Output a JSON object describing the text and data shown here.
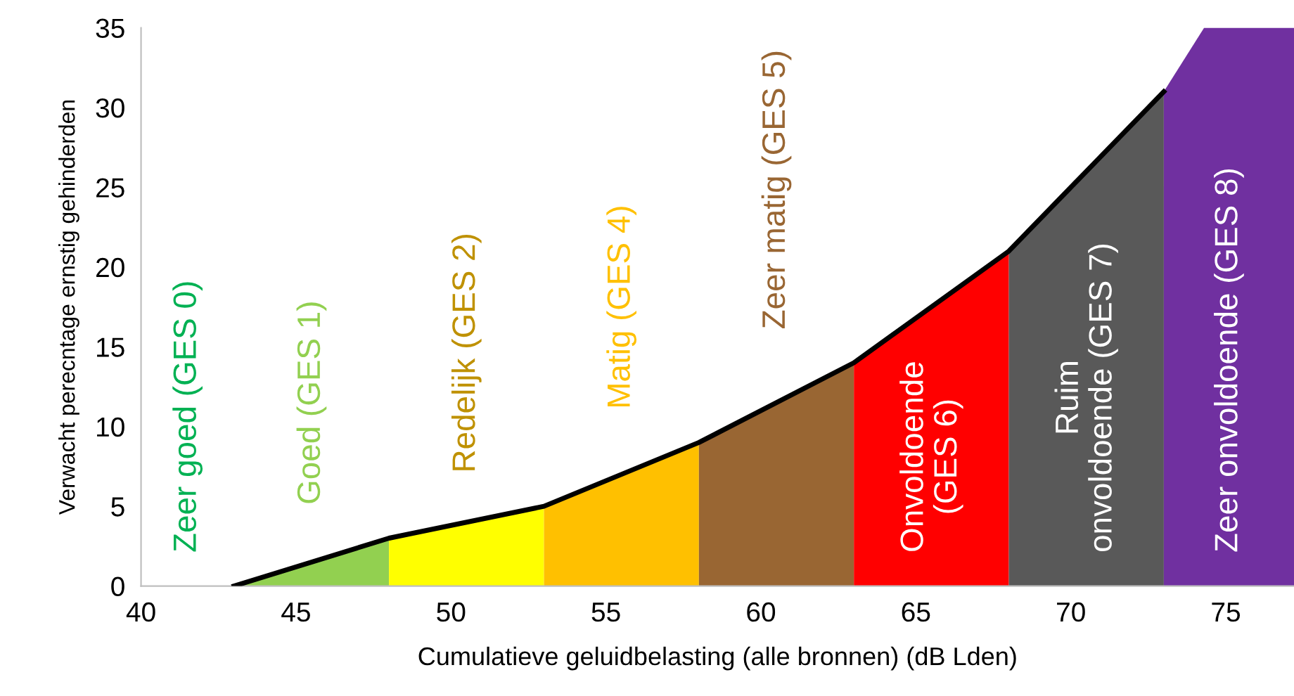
{
  "chart_data": {
    "type": "area",
    "xlabel": "Cumulatieve geluidbelasting (alle bronnen) (dB Lden)",
    "ylabel": "Verwacht perecntage ernstig gehinderden",
    "xlim": [
      40,
      77.2
    ],
    "ylim": [
      0,
      35
    ],
    "xticks": [
      40,
      45,
      50,
      55,
      60,
      65,
      70,
      75
    ],
    "yticks": [
      0,
      5,
      10,
      15,
      20,
      25,
      30,
      35
    ],
    "grid": false,
    "legend": false,
    "annotations": [
      "Zeer goed (GES 0)"
    ],
    "series": [
      {
        "name": "Goed (GES 1)",
        "color": "#92d050",
        "x": [
          43,
          48
        ],
        "values": [
          0,
          3
        ]
      },
      {
        "name": "Redelijk (GES 2)",
        "color": "#ffff00",
        "x": [
          48,
          53
        ],
        "values": [
          3,
          5
        ]
      },
      {
        "name": "Matig (GES 4)",
        "color": "#ffc000",
        "x": [
          53,
          58
        ],
        "values": [
          5,
          9
        ]
      },
      {
        "name": "Zeer matig (GES 5)",
        "color": "#996633",
        "x": [
          58,
          63
        ],
        "values": [
          9,
          14
        ]
      },
      {
        "name": "Onvoldoende\n(GES 6)",
        "color": "#ff0000",
        "x": [
          63,
          68
        ],
        "values": [
          14,
          21
        ]
      },
      {
        "name": "Ruim\nonvoldoende (GES 7)",
        "color": "#595959",
        "x": [
          68,
          73
        ],
        "values": [
          21,
          31
        ]
      },
      {
        "name": "Zeer onvoldoende (GES 8)",
        "color": "#7030a0",
        "x": [
          73,
          74.3,
          77.2
        ],
        "values": [
          31,
          35,
          35
        ]
      },
      {
        "type": "line",
        "color": "#000000",
        "x": [
          43,
          48,
          53,
          58,
          63,
          68,
          73
        ],
        "values": [
          0,
          3,
          5,
          9,
          14,
          21,
          31
        ]
      }
    ]
  }
}
